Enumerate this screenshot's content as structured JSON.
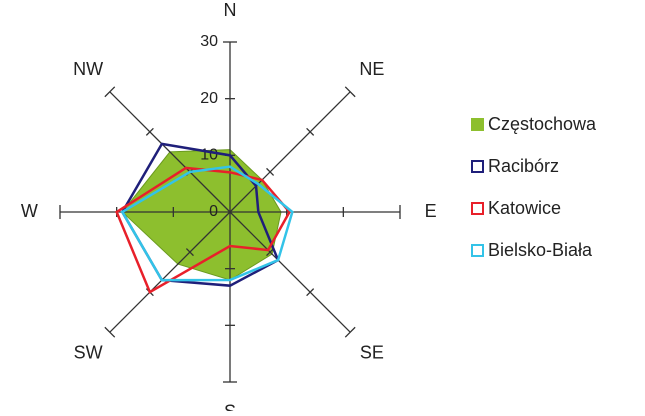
{
  "chart_data": {
    "type": "radar",
    "categories": [
      "N",
      "NE",
      "E",
      "SE",
      "S",
      "SW",
      "W",
      "NW"
    ],
    "series": [
      {
        "name": "Częstochowa",
        "color": "#8dbf2e",
        "fill": true,
        "values": [
          11,
          8,
          9,
          10.5,
          12,
          13,
          19,
          15
        ]
      },
      {
        "name": "Racibórz",
        "color": "#1f1f7a",
        "values": [
          10,
          6.5,
          5,
          12,
          13,
          17,
          19,
          17
        ]
      },
      {
        "name": "Katowice",
        "color": "#e8202a",
        "values": [
          7,
          8,
          10.5,
          9.5,
          6,
          20,
          20,
          11
        ]
      },
      {
        "name": "Bielsko-Biała",
        "color": "#33c3e8",
        "values": [
          8,
          7,
          11,
          12,
          12,
          17,
          19,
          10
        ]
      }
    ],
    "rlim": [
      0,
      30
    ],
    "rticks": [
      0,
      10,
      20,
      30
    ],
    "legend": "right"
  }
}
